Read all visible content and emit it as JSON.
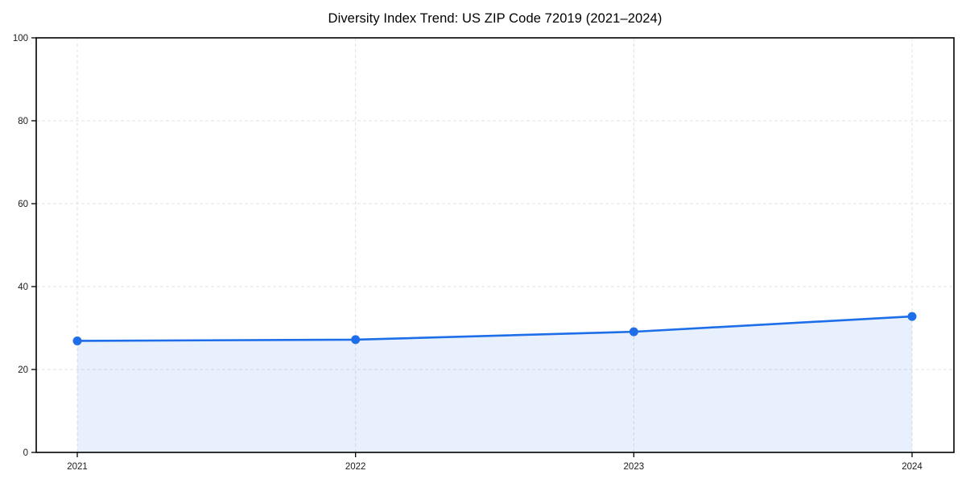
{
  "figure": {
    "background": "#ffffff"
  },
  "chart_data": {
    "type": "area",
    "title": "Diversity Index Trend: US ZIP Code 72019 (2021–2024)",
    "categories": [
      "2021",
      "2022",
      "2023",
      "2024"
    ],
    "series": [
      {
        "name": "Diversity Index",
        "values": [
          26.9,
          27.2,
          29.1,
          32.8
        ]
      }
    ],
    "xlabel": "",
    "ylabel": "",
    "ylim": [
      0,
      100
    ],
    "yticks": [
      0,
      20,
      40,
      60,
      80,
      100
    ],
    "grid": true,
    "grid_style": "dashed",
    "legend_position": "none",
    "line_color": "#1d6ee8",
    "marker_color": "#1d6ee8",
    "fill_color": "rgba(29, 110, 232, 0.10)",
    "grid_color": "#e3e3e3",
    "axis_color": "#000000",
    "text_color": "#1a1a1a"
  }
}
